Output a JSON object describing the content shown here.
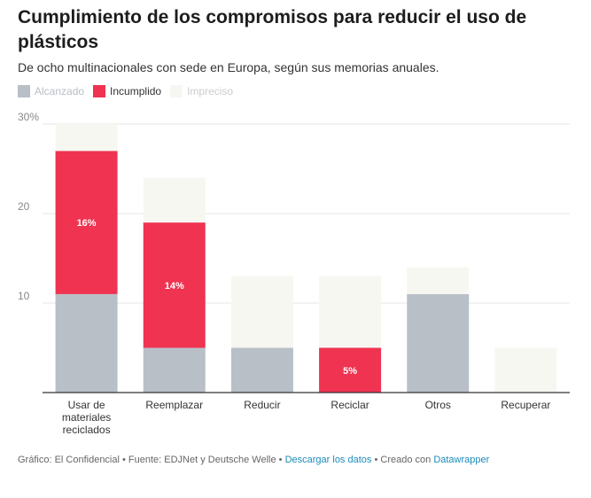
{
  "title": "Cumplimiento de los compromisos para reducir el uso de plásticos",
  "subtitle": "De ocho multinacionales con sede en Europa, según sus memorias anuales.",
  "colors": {
    "alcanzado": "#b8bfc7",
    "incumplido": "#ef3351",
    "impreciso": "#f7f7f2",
    "legend_impreciso_text": "#cccccc"
  },
  "chart_data": {
    "type": "bar",
    "stacked": true,
    "categories": [
      "Usar de materiales reciclados",
      "Reemplazar",
      "Reducir",
      "Reciclar",
      "Otros",
      "Recuperar"
    ],
    "category_labels": [
      [
        "Usar de",
        "materiales",
        "reciclados"
      ],
      [
        "Reemplazar"
      ],
      [
        "Reducir"
      ],
      [
        "Reciclar"
      ],
      [
        "Otros"
      ],
      [
        "Recuperar"
      ]
    ],
    "series": [
      {
        "name": "Alcanzado",
        "values": [
          11,
          5,
          5,
          0,
          11,
          0
        ]
      },
      {
        "name": "Incumplido",
        "values": [
          16,
          14,
          0,
          5,
          0,
          0
        ]
      },
      {
        "name": "Impreciso",
        "values": [
          3,
          5,
          8,
          8,
          3,
          5
        ]
      }
    ],
    "data_labels": [
      {
        "category": 0,
        "series": "Incumplido",
        "text": "16%"
      },
      {
        "category": 1,
        "series": "Incumplido",
        "text": "14%"
      },
      {
        "category": 3,
        "series": "Incumplido",
        "text": "5%"
      }
    ],
    "y_ticks": [
      {
        "value": 10,
        "label": "10"
      },
      {
        "value": 20,
        "label": "20"
      },
      {
        "value": 30,
        "label": "30%"
      }
    ],
    "ylim": [
      0,
      30
    ],
    "grid": true,
    "legend": "top-left"
  },
  "footer": {
    "prefix": "Gráfico: El Confidencial • Fuente: EDJNet y Deutsche Welle •",
    "download_link": "Descargar los datos",
    "separator": "• Creado con",
    "tool_link": "Datawrapper"
  }
}
